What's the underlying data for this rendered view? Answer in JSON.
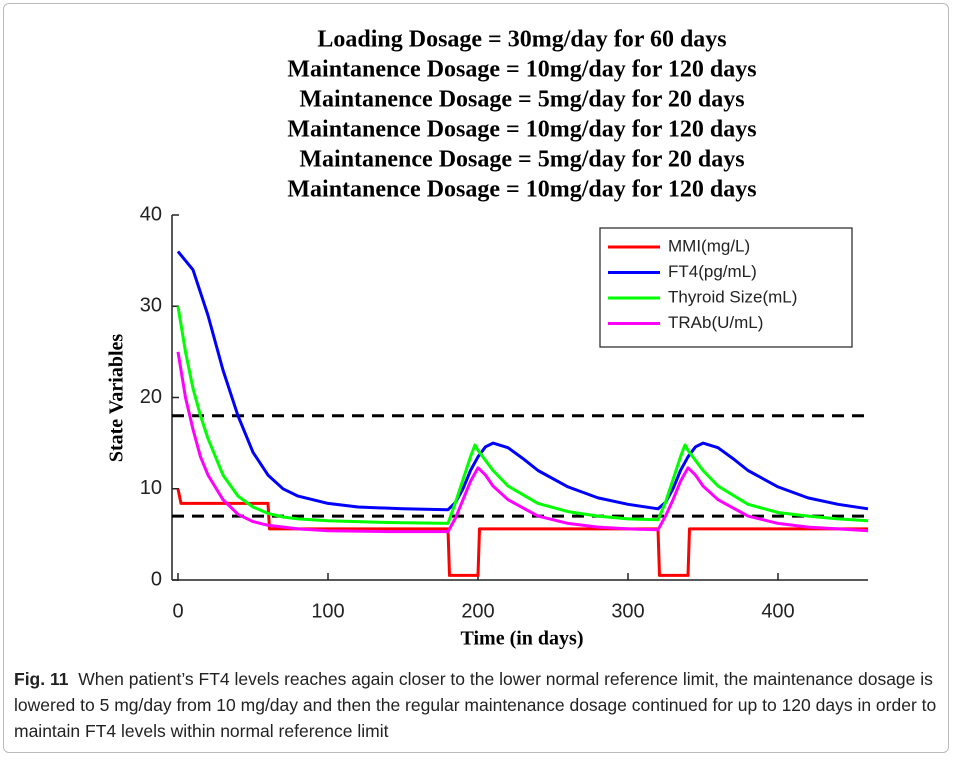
{
  "chart_data": {
    "type": "line",
    "title": [
      "Loading Dosage = 30mg/day for 60 days",
      "Maintanence Dosage = 10mg/day for 120 days",
      "Maintanence Dosage = 5mg/day for 20 days",
      "Maintanence Dosage = 10mg/day for 120 days",
      "Maintanence Dosage = 5mg/day for 20 days",
      "Maintanence Dosage = 10mg/day for 120 days"
    ],
    "x_label": "Time (in days)",
    "y_label": "State Variables",
    "xlim": [
      -4,
      460
    ],
    "xticks": [
      0,
      100,
      200,
      300,
      400
    ],
    "ylim": [
      0,
      40
    ],
    "yticks": [
      0,
      10,
      20,
      30,
      40
    ],
    "legend": "upper right",
    "hlines": [
      18,
      7
    ],
    "hline_color": "#000000",
    "series": [
      {
        "name": "MMI(mg/L)",
        "color": "#ff0000",
        "x": [
          0,
          2,
          60,
          61,
          180,
          181,
          200,
          201,
          320,
          321,
          340,
          341,
          460
        ],
        "values": [
          10,
          8.4,
          8.4,
          5.6,
          5.6,
          0.5,
          0.5,
          5.6,
          5.6,
          0.5,
          0.5,
          5.6,
          5.6
        ]
      },
      {
        "name": "FT4(pg/mL)",
        "color": "#0000ff",
        "x": [
          0,
          10,
          20,
          30,
          40,
          50,
          60,
          70,
          80,
          100,
          120,
          150,
          180,
          185,
          190,
          195,
          200,
          205,
          210,
          220,
          230,
          240,
          260,
          280,
          300,
          320,
          325,
          330,
          335,
          340,
          345,
          350,
          360,
          370,
          380,
          400,
          420,
          440,
          460
        ],
        "values": [
          36,
          34,
          29,
          23,
          18,
          14,
          11.5,
          10,
          9.2,
          8.4,
          8,
          7.8,
          7.7,
          8.5,
          10,
          12,
          13.5,
          14.6,
          15,
          14.5,
          13.3,
          12,
          10.2,
          9,
          8.3,
          7.8,
          8.5,
          10,
          12,
          13.5,
          14.6,
          15,
          14.5,
          13.3,
          12,
          10.2,
          9,
          8.3,
          7.8
        ]
      },
      {
        "name": "Thyroid Size(mL)",
        "color": "#00ff00",
        "x": [
          0,
          5,
          10,
          15,
          20,
          30,
          40,
          50,
          60,
          70,
          80,
          100,
          140,
          180,
          185,
          190,
          195,
          198,
          200,
          210,
          220,
          240,
          260,
          280,
          300,
          320,
          325,
          330,
          335,
          338,
          340,
          350,
          360,
          380,
          400,
          420,
          440,
          460
        ],
        "values": [
          30,
          25,
          21,
          18,
          15.5,
          11.5,
          9.2,
          8,
          7.3,
          6.9,
          6.7,
          6.5,
          6.3,
          6.2,
          8.5,
          11,
          13.5,
          14.8,
          14.2,
          12,
          10.3,
          8.4,
          7.5,
          7,
          6.7,
          6.6,
          8.5,
          11,
          13.5,
          14.8,
          14.2,
          12,
          10.3,
          8.3,
          7.4,
          7,
          6.7,
          6.5
        ]
      },
      {
        "name": "TRAb(U/mL)",
        "color": "#ff00ff",
        "x": [
          0,
          5,
          10,
          15,
          20,
          30,
          40,
          50,
          60,
          80,
          100,
          140,
          180,
          185,
          190,
          195,
          200,
          205,
          210,
          220,
          240,
          260,
          280,
          300,
          320,
          325,
          330,
          335,
          340,
          345,
          350,
          360,
          380,
          400,
          420,
          440,
          460
        ],
        "values": [
          25,
          20,
          16.5,
          13.5,
          11.5,
          8.8,
          7.2,
          6.4,
          6,
          5.6,
          5.4,
          5.3,
          5.3,
          6.8,
          8.8,
          10.8,
          12.3,
          11.5,
          10.3,
          8.8,
          7,
          6.2,
          5.8,
          5.6,
          5.5,
          7,
          8.8,
          10.8,
          12.3,
          11.5,
          10.3,
          8.8,
          7,
          6.2,
          5.8,
          5.6,
          5.4
        ]
      }
    ]
  },
  "caption": {
    "label": "Fig. 11",
    "text": "When patient’s FT4 levels reaches again closer to the lower normal reference limit, the maintenance dosage is lowered to 5 mg/day from 10 mg/day and then the regular maintenance dosage continued for up to 120 days in order to maintain FT4 levels within normal reference limit"
  }
}
